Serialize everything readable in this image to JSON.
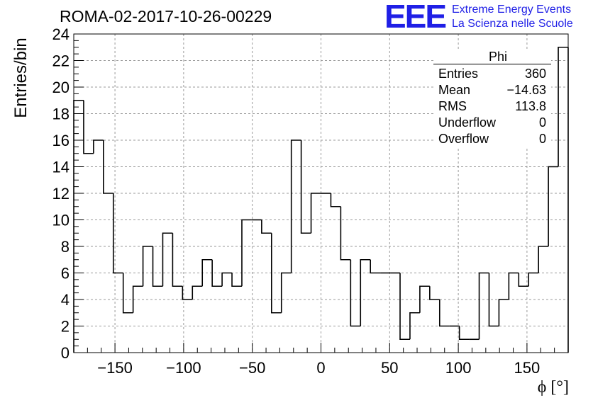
{
  "header": {
    "title": "ROMA-02-2017-10-26-00229",
    "logo": "EEE",
    "logo_line1": "Extreme Energy Events",
    "logo_line2": "La Scienza nelle Scuole",
    "logo_color": "#1f1fe6"
  },
  "stats": {
    "title": "Phi",
    "rows": [
      {
        "label": "Entries",
        "value": "360"
      },
      {
        "label": "Mean",
        "value": "−14.63"
      },
      {
        "label": "RMS",
        "value": "113.8"
      },
      {
        "label": "Underflow",
        "value": "0"
      },
      {
        "label": "Overflow",
        "value": "0"
      }
    ]
  },
  "chart_data": {
    "type": "bar",
    "subtype": "histogram",
    "title": "ROMA-02-2017-10-26-00229",
    "xlabel": "ϕ [°]",
    "ylabel": "Entries/bin",
    "xlim": [
      -180,
      180
    ],
    "ylim": [
      0,
      24
    ],
    "bin_width": 7.2,
    "xticks": [
      -150,
      -100,
      -50,
      0,
      50,
      100,
      150
    ],
    "xtick_labels": [
      "−150",
      "−100",
      "−50",
      "0",
      "50",
      "100",
      "150"
    ],
    "yticks": [
      0,
      2,
      4,
      6,
      8,
      10,
      12,
      14,
      16,
      18,
      20,
      22,
      24
    ],
    "grid": true,
    "values": [
      19,
      15,
      16,
      12,
      6,
      3,
      5,
      8,
      5,
      9,
      5,
      4,
      5,
      7,
      5,
      6,
      5,
      10,
      10,
      9,
      3,
      6,
      16,
      9,
      12,
      12,
      11,
      7,
      2,
      7,
      6,
      6,
      6,
      1,
      3,
      5,
      4,
      2,
      2,
      1,
      1,
      6,
      2,
      4,
      6,
      5,
      6,
      8,
      14,
      23
    ]
  }
}
